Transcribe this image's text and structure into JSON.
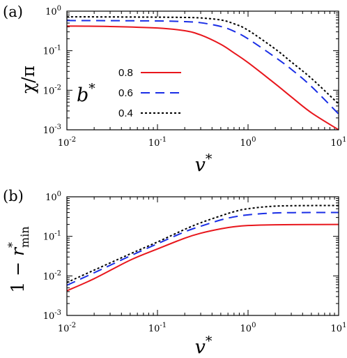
{
  "chart_data": [
    {
      "type": "line",
      "panel_label": "(a)",
      "xlabel": "v*",
      "ylabel": "χ/π",
      "xscale": "log",
      "yscale": "log",
      "xlim": [
        0.01,
        10
      ],
      "ylim": [
        0.001,
        1
      ],
      "x_ticks": [
        {
          "base": "10",
          "exp": "-2"
        },
        {
          "base": "10",
          "exp": "-1"
        },
        {
          "base": "10",
          "exp": "0"
        },
        {
          "base": "10",
          "exp": "1"
        }
      ],
      "y_ticks": [
        {
          "base": "10",
          "exp": "-3"
        },
        {
          "base": "10",
          "exp": "-2"
        },
        {
          "base": "10",
          "exp": "-1"
        },
        {
          "base": "10",
          "exp": "0"
        }
      ],
      "legend": {
        "title": "b*",
        "placement": "center-left"
      },
      "series": [
        {
          "name": "0.8",
          "color": "#e8161c",
          "style": "solid",
          "x": [
            0.01,
            0.03,
            0.1,
            0.2,
            0.3,
            0.5,
            0.7,
            1,
            2,
            3,
            5,
            10
          ],
          "y": [
            0.42,
            0.41,
            0.375,
            0.32,
            0.25,
            0.145,
            0.088,
            0.05,
            0.0145,
            0.0068,
            0.0027,
            0.001
          ]
        },
        {
          "name": "0.6",
          "color": "#1a2ee6",
          "style": "dashed",
          "x": [
            0.01,
            0.03,
            0.1,
            0.2,
            0.3,
            0.5,
            0.7,
            1,
            2,
            3,
            5,
            10
          ],
          "y": [
            0.58,
            0.575,
            0.565,
            0.545,
            0.51,
            0.41,
            0.31,
            0.2,
            0.068,
            0.034,
            0.0125,
            0.0025
          ]
        },
        {
          "name": "0.4",
          "color": "#000000",
          "style": "dotted",
          "x": [
            0.01,
            0.03,
            0.1,
            0.2,
            0.3,
            0.5,
            0.7,
            1,
            2,
            3,
            5,
            10
          ],
          "y": [
            0.72,
            0.715,
            0.705,
            0.695,
            0.675,
            0.6,
            0.48,
            0.33,
            0.11,
            0.052,
            0.02,
            0.0045
          ]
        }
      ]
    },
    {
      "type": "line",
      "panel_label": "(b)",
      "xlabel": "v*",
      "ylabel": "1 − r*min",
      "xscale": "log",
      "yscale": "log",
      "xlim": [
        0.01,
        10
      ],
      "ylim": [
        0.001,
        1
      ],
      "x_ticks": [
        {
          "base": "10",
          "exp": "-2"
        },
        {
          "base": "10",
          "exp": "-1"
        },
        {
          "base": "10",
          "exp": "0"
        },
        {
          "base": "10",
          "exp": "1"
        }
      ],
      "y_ticks": [
        {
          "base": "10",
          "exp": "-3"
        },
        {
          "base": "10",
          "exp": "-2"
        },
        {
          "base": "10",
          "exp": "-1"
        },
        {
          "base": "10",
          "exp": "0"
        }
      ],
      "series": [
        {
          "name": "0.8",
          "color": "#e8161c",
          "style": "solid",
          "x": [
            0.01,
            0.02,
            0.05,
            0.1,
            0.2,
            0.3,
            0.5,
            0.7,
            1,
            2,
            5,
            10
          ],
          "y": [
            0.0042,
            0.0085,
            0.025,
            0.048,
            0.09,
            0.12,
            0.155,
            0.175,
            0.188,
            0.196,
            0.199,
            0.2
          ]
        },
        {
          "name": "0.6",
          "color": "#1a2ee6",
          "style": "dashed",
          "x": [
            0.01,
            0.02,
            0.05,
            0.1,
            0.2,
            0.3,
            0.5,
            0.7,
            1,
            2,
            5,
            10
          ],
          "y": [
            0.0058,
            0.012,
            0.032,
            0.065,
            0.13,
            0.18,
            0.26,
            0.31,
            0.35,
            0.39,
            0.4,
            0.4
          ]
        },
        {
          "name": "0.4",
          "color": "#000000",
          "style": "dotted",
          "x": [
            0.01,
            0.02,
            0.05,
            0.1,
            0.2,
            0.3,
            0.5,
            0.7,
            1,
            2,
            5,
            10
          ],
          "y": [
            0.0068,
            0.014,
            0.036,
            0.072,
            0.15,
            0.22,
            0.33,
            0.42,
            0.5,
            0.58,
            0.6,
            0.6
          ]
        }
      ]
    }
  ]
}
